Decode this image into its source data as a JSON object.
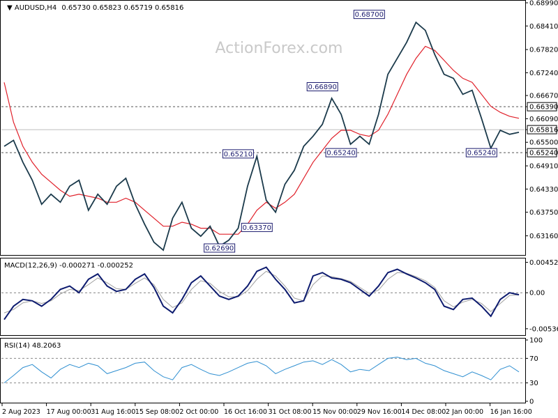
{
  "header": {
    "symbol_label": "AUDUSD,H4",
    "ohlc": "0.65730 0.65823 0.65719 0.65816",
    "watermark": "ActionForex.com"
  },
  "chart_data": [
    {
      "type": "line",
      "panel": "price",
      "title": "AUDUSD,H4",
      "ylim": [
        0.6275,
        0.6899
      ],
      "y_ticks": [
        "0.68990",
        "0.68410",
        "0.67820",
        "0.67240",
        "0.66670",
        "0.66390",
        "0.66090",
        "0.65816",
        "0.65500",
        "0.65240",
        "0.64910",
        "0.64330",
        "0.63750",
        "0.63160"
      ],
      "x_labels": [
        "2 Aug 2023",
        "17 Aug 00:00",
        "31 Aug 16:00",
        "15 Sep 08:00",
        "2 Oct 00:00",
        "16 Oct 16:00",
        "31 Oct 08:00",
        "15 Nov 00:00",
        "29 Nov 16:00",
        "14 Dec 08:00",
        "2 Jan 00:00",
        "16 Jan 16:00"
      ],
      "series": [
        {
          "values": [
            0.654,
            0.6555,
            0.65,
            0.6455,
            0.6395,
            0.642,
            0.64,
            0.644,
            0.6455,
            0.638,
            0.642,
            0.6395,
            0.644,
            0.646,
            0.6395,
            0.6345,
            0.63,
            0.628,
            0.636,
            0.64,
            0.6335,
            0.6315,
            0.634,
            0.629,
            0.6305,
            0.6335,
            0.644,
            0.6515,
            0.6405,
            0.6375,
            0.6445,
            0.648,
            0.654,
            0.6565,
            0.6595,
            0.666,
            0.662,
            0.6545,
            0.6565,
            0.6545,
            0.662,
            0.672,
            0.676,
            0.68,
            0.685,
            0.683,
            0.677,
            0.672,
            0.671,
            0.667,
            0.668,
            0.661,
            0.6535,
            0.658,
            0.657,
            0.6575
          ]
        },
        {
          "values": [
            0.67,
            0.66,
            0.654,
            0.65,
            0.647,
            0.645,
            0.643,
            0.6415,
            0.642,
            0.6415,
            0.641,
            0.64,
            0.64,
            0.641,
            0.64,
            0.638,
            0.636,
            0.634,
            0.634,
            0.635,
            0.6345,
            0.6335,
            0.6335,
            0.632,
            0.632,
            0.632,
            0.6345,
            0.638,
            0.64,
            0.6385,
            0.64,
            0.642,
            0.646,
            0.65,
            0.653,
            0.656,
            0.658,
            0.658,
            0.657,
            0.6565,
            0.658,
            0.662,
            0.667,
            0.672,
            0.676,
            0.679,
            0.678,
            0.6755,
            0.673,
            0.671,
            0.67,
            0.667,
            0.664,
            0.6625,
            0.6615,
            0.661
          ]
        }
      ],
      "hlines": [
        0.6639,
        0.6524
      ],
      "current_line": 0.65816,
      "annotations": [
        {
          "text": "0.68700",
          "x": 39,
          "y": 0.687
        },
        {
          "text": "0.66890",
          "x": 34,
          "y": 0.6689
        },
        {
          "text": "0.65210",
          "x": 25,
          "y": 0.6521
        },
        {
          "text": "0.65240",
          "x": 36,
          "y": 0.6524
        },
        {
          "text": "0.65240",
          "x": 51,
          "y": 0.6524
        },
        {
          "text": "0.63370",
          "x": 27,
          "y": 0.6337
        },
        {
          "text": "0.62690",
          "x": 23,
          "y": 0.6269
        }
      ],
      "colors": {
        "price": "#1b3a4b",
        "ma": "#e0202a",
        "hline": "#555555"
      }
    },
    {
      "type": "line",
      "panel": "macd",
      "title": "MACD(12,26,9) -0.000271 -0.000252",
      "ylim": [
        -0.006,
        0.0049
      ],
      "y_ticks": [
        "0.004526",
        "0.00",
        "-0.005363"
      ],
      "series": [
        {
          "values": [
            -0.004,
            -0.002,
            -0.001,
            -0.0012,
            -0.002,
            -0.001,
            0.0005,
            0.001,
            0.0,
            0.002,
            0.0028,
            0.001,
            0.0002,
            0.0005,
            0.002,
            0.0028,
            0.0008,
            -0.002,
            -0.003,
            -0.001,
            0.0015,
            0.0025,
            0.001,
            -0.0005,
            -0.001,
            -0.0005,
            0.001,
            0.0032,
            0.0038,
            0.002,
            0.0005,
            -0.0015,
            -0.0012,
            0.0025,
            0.003,
            0.0022,
            0.002,
            0.0015,
            0.0005,
            -0.0005,
            0.001,
            0.003,
            0.0035,
            0.0028,
            0.0022,
            0.0015,
            0.0005,
            -0.002,
            -0.0025,
            -0.001,
            -0.0008,
            -0.002,
            -0.0035,
            -0.001,
            0.0,
            -0.0003
          ]
        },
        {
          "values": [
            -0.003,
            -0.0025,
            -0.0015,
            -0.0012,
            -0.0016,
            -0.0012,
            -0.0002,
            0.0005,
            0.0003,
            0.0012,
            0.0022,
            0.0015,
            0.0006,
            0.0005,
            0.0014,
            0.0022,
            0.0012,
            -0.001,
            -0.0022,
            -0.0015,
            0.0005,
            0.0018,
            0.0014,
            0.0002,
            -0.0006,
            -0.0006,
            0.0003,
            0.002,
            0.0032,
            0.0025,
            0.001,
            -0.0008,
            -0.0012,
            0.0012,
            0.0025,
            0.0024,
            0.0021,
            0.0017,
            0.0008,
            -0.0001,
            0.0004,
            0.002,
            0.003,
            0.0029,
            0.0024,
            0.0018,
            0.0008,
            -0.0012,
            -0.0021,
            -0.0014,
            -0.001,
            -0.0016,
            -0.0028,
            -0.0016,
            -0.0004,
            -0.0003
          ]
        }
      ],
      "colors": {
        "macd": "#0d1b6f",
        "signal": "#a0a0a0",
        "zero": "#808080"
      }
    },
    {
      "type": "line",
      "panel": "rsi",
      "title": "RSI(14) 48.2063",
      "ylim": [
        0,
        100
      ],
      "y_ticks": [
        "100",
        "70",
        "30",
        "0"
      ],
      "levels": [
        70,
        30
      ],
      "series": [
        {
          "values": [
            30,
            42,
            55,
            60,
            48,
            38,
            52,
            60,
            55,
            62,
            58,
            45,
            50,
            55,
            62,
            64,
            50,
            40,
            35,
            55,
            60,
            52,
            45,
            42,
            48,
            55,
            62,
            65,
            58,
            45,
            52,
            58,
            64,
            66,
            60,
            68,
            60,
            48,
            52,
            50,
            60,
            70,
            72,
            68,
            70,
            62,
            58,
            50,
            45,
            40,
            48,
            42,
            35,
            52,
            58,
            48
          ]
        }
      ],
      "colors": {
        "rsi": "#2f8fd1",
        "level": "#888888"
      }
    }
  ]
}
